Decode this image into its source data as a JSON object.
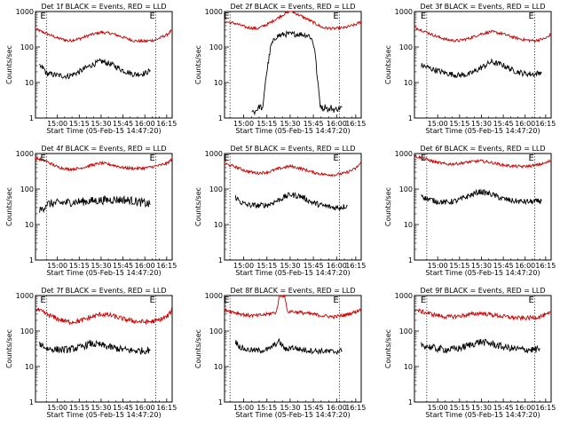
{
  "chart_data": [
    {
      "type": "line",
      "title": "Det 1f BLACK = Events, RED = LLD",
      "xlabel": "Start Time (05-Feb-15 14:47:20)",
      "ylabel": "Counts/sec",
      "yscale": "log",
      "ylim": [
        1,
        1000
      ],
      "xlim": [
        0,
        100
      ],
      "xticks": [
        "15:00",
        "15:15",
        "15:30",
        "15:45",
        "16:00",
        "16:15"
      ],
      "xtick_pos": [
        16,
        32,
        48,
        64,
        80,
        96
      ],
      "markers": [
        "E",
        "E"
      ],
      "vlines": [
        8,
        88
      ],
      "series": [
        {
          "color": "#cc0000",
          "x": [
            0,
            8,
            16,
            24,
            32,
            40,
            48,
            56,
            64,
            72,
            80,
            88,
            96,
            100
          ],
          "y": [
            320,
            240,
            180,
            150,
            170,
            220,
            260,
            240,
            190,
            150,
            145,
            160,
            220,
            300
          ],
          "noise": 0.04
        },
        {
          "color": "#000000",
          "x": [
            3,
            6,
            8,
            16,
            24,
            32,
            40,
            48,
            56,
            64,
            72,
            80,
            84
          ],
          "y": [
            28,
            25,
            18,
            16,
            15,
            20,
            30,
            40,
            32,
            22,
            17,
            18,
            22
          ],
          "noise": 0.08
        }
      ]
    },
    {
      "type": "line",
      "title": "Det 2f BLACK = Events, RED = LLD",
      "xlabel": "Start Time (05-Feb-15 14:47:20)",
      "ylabel": "Counts/sec",
      "yscale": "log",
      "ylim": [
        1,
        1000
      ],
      "xlim": [
        0,
        100
      ],
      "xticks": [
        "15:00",
        "15:15",
        "15:30",
        "15:45",
        "16:00",
        "16:15"
      ],
      "xtick_pos": [
        14,
        31,
        48,
        65,
        82,
        96
      ],
      "markers": [
        "E",
        "E"
      ],
      "vlines": [
        4,
        84
      ],
      "series": [
        {
          "color": "#cc0000",
          "x": [
            0,
            8,
            16,
            24,
            32,
            40,
            48,
            56,
            64,
            72,
            80,
            88,
            96,
            100
          ],
          "y": [
            520,
            460,
            360,
            330,
            450,
            700,
            1050,
            750,
            520,
            350,
            330,
            350,
            430,
            520
          ],
          "noise": 0.04
        },
        {
          "color": "#000000",
          "x": [
            20,
            22,
            24,
            26,
            28,
            30,
            34,
            38,
            44,
            50,
            56,
            62,
            64,
            66,
            68,
            70,
            72,
            74,
            76,
            78,
            80,
            86
          ],
          "y": [
            1.6,
            1.5,
            1.8,
            2.2,
            1.7,
            12,
            110,
            200,
            230,
            230,
            230,
            210,
            160,
            90,
            12,
            2.4,
            1.8,
            2.2,
            1.6,
            2.0,
            1.7,
            2.0
          ],
          "noise": 0.08
        }
      ]
    },
    {
      "type": "line",
      "title": "Det 3f BLACK = Events, RED = LLD",
      "xlabel": "Start Time (05-Feb-15 14:47:20)",
      "ylabel": "Counts/sec",
      "yscale": "log",
      "ylim": [
        1,
        1000
      ],
      "xlim": [
        0,
        100
      ],
      "xticks": [
        "15:00",
        "15:15",
        "15:30",
        "15:45",
        "16:00",
        "16:15"
      ],
      "xtick_pos": [
        17,
        33,
        49,
        65,
        81,
        96
      ],
      "markers": [
        "E",
        "E"
      ],
      "vlines": [
        9,
        88
      ],
      "series": [
        {
          "color": "#cc0000",
          "x": [
            0,
            8,
            16,
            24,
            32,
            40,
            48,
            56,
            64,
            72,
            80,
            88,
            96,
            100
          ],
          "y": [
            360,
            270,
            200,
            160,
            150,
            175,
            230,
            270,
            240,
            190,
            160,
            150,
            175,
            230
          ],
          "noise": 0.04
        },
        {
          "color": "#000000",
          "x": [
            5,
            8,
            16,
            24,
            32,
            40,
            48,
            56,
            64,
            72,
            80,
            88,
            93
          ],
          "y": [
            30,
            28,
            22,
            18,
            16,
            17,
            25,
            38,
            32,
            22,
            18,
            17,
            20
          ],
          "noise": 0.08
        }
      ]
    },
    {
      "type": "line",
      "title": "Det 4f BLACK = Events, RED = LLD",
      "xlabel": "Start Time (05-Feb-15 14:47:20)",
      "ylabel": "Counts/sec",
      "yscale": "log",
      "ylim": [
        1,
        1000
      ],
      "xlim": [
        0,
        100
      ],
      "xticks": [
        "15:00",
        "15:15",
        "15:30",
        "15:45",
        "16:00",
        "16:15"
      ],
      "xtick_pos": [
        16,
        32,
        48,
        64,
        80,
        96
      ],
      "markers": [
        "E",
        "E"
      ],
      "vlines": [
        8,
        88
      ],
      "series": [
        {
          "color": "#cc0000",
          "x": [
            0,
            8,
            16,
            24,
            32,
            40,
            48,
            56,
            64,
            72,
            80,
            88,
            96,
            100
          ],
          "y": [
            750,
            600,
            420,
            360,
            380,
            460,
            540,
            480,
            400,
            380,
            390,
            440,
            520,
            700
          ],
          "noise": 0.04
        },
        {
          "color": "#000000",
          "x": [
            3,
            6,
            8,
            16,
            24,
            32,
            40,
            48,
            56,
            64,
            72,
            80,
            84
          ],
          "y": [
            24,
            30,
            38,
            40,
            42,
            44,
            46,
            48,
            50,
            50,
            46,
            40,
            36
          ],
          "noise": 0.12
        }
      ]
    },
    {
      "type": "line",
      "title": "Det 5f BLACK = Events, RED = LLD",
      "xlabel": "Start Time (05-Feb-15 14:47:20)",
      "ylabel": "Counts/sec",
      "yscale": "log",
      "ylim": [
        1,
        1000
      ],
      "xlim": [
        0,
        100
      ],
      "xticks": [
        "15:00",
        "15:15",
        "15:30",
        "15:45",
        "16:00",
        "16:15"
      ],
      "xtick_pos": [
        14,
        31,
        48,
        65,
        82,
        96
      ],
      "markers": [
        "E",
        "E"
      ],
      "vlines": [
        4,
        84
      ],
      "series": [
        {
          "color": "#cc0000",
          "x": [
            0,
            8,
            16,
            24,
            32,
            40,
            48,
            56,
            64,
            72,
            80,
            88,
            96,
            100
          ],
          "y": [
            520,
            420,
            320,
            280,
            300,
            380,
            440,
            380,
            300,
            260,
            250,
            280,
            380,
            560
          ],
          "noise": 0.04
        },
        {
          "color": "#000000",
          "x": [
            8,
            12,
            16,
            24,
            32,
            40,
            48,
            56,
            64,
            72,
            80,
            84,
            90
          ],
          "y": [
            60,
            42,
            36,
            34,
            36,
            50,
            70,
            62,
            42,
            34,
            30,
            30,
            34
          ],
          "noise": 0.08
        }
      ]
    },
    {
      "type": "line",
      "title": "Det 6f BLACK = Events, RED = LLD",
      "xlabel": "Start Time (05-Feb-15 14:47:20)",
      "ylabel": "Counts/sec",
      "yscale": "log",
      "ylim": [
        1,
        1000
      ],
      "xlim": [
        0,
        100
      ],
      "xticks": [
        "15:00",
        "15:15",
        "15:30",
        "15:45",
        "16:00",
        "16:15"
      ],
      "xtick_pos": [
        17,
        33,
        49,
        65,
        81,
        96
      ],
      "markers": [
        "E",
        "E"
      ],
      "vlines": [
        9,
        88
      ],
      "series": [
        {
          "color": "#cc0000",
          "x": [
            0,
            8,
            16,
            24,
            32,
            40,
            48,
            56,
            64,
            72,
            80,
            88,
            96,
            100
          ],
          "y": [
            850,
            700,
            560,
            500,
            520,
            580,
            620,
            560,
            480,
            440,
            430,
            460,
            540,
            640
          ],
          "noise": 0.04
        },
        {
          "color": "#000000",
          "x": [
            5,
            8,
            16,
            24,
            32,
            40,
            48,
            56,
            64,
            72,
            80,
            88,
            93
          ],
          "y": [
            70,
            55,
            45,
            42,
            48,
            65,
            85,
            72,
            54,
            46,
            44,
            44,
            46
          ],
          "noise": 0.08
        }
      ]
    },
    {
      "type": "line",
      "title": "Det 7f BLACK = Events, RED = LLD",
      "xlabel": "Start Time (05-Feb-15 14:47:20)",
      "ylabel": "Counts/sec",
      "yscale": "log",
      "ylim": [
        1,
        1000
      ],
      "xlim": [
        0,
        100
      ],
      "xticks": [
        "15:00",
        "15:15",
        "15:30",
        "15:45",
        "16:00",
        "16:15"
      ],
      "xtick_pos": [
        16,
        32,
        48,
        64,
        80,
        96
      ],
      "markers": [
        "E",
        "E"
      ],
      "vlines": [
        8,
        88
      ],
      "series": [
        {
          "color": "#cc0000",
          "x": [
            0,
            8,
            16,
            24,
            32,
            40,
            48,
            56,
            64,
            72,
            80,
            88,
            96,
            100
          ],
          "y": [
            420,
            300,
            220,
            180,
            190,
            240,
            300,
            270,
            220,
            190,
            180,
            190,
            250,
            380
          ],
          "noise": 0.07
        },
        {
          "color": "#000000",
          "x": [
            3,
            6,
            8,
            16,
            24,
            32,
            40,
            48,
            56,
            64,
            72,
            80,
            84
          ],
          "y": [
            45,
            38,
            32,
            30,
            30,
            34,
            44,
            40,
            34,
            30,
            28,
            28,
            30
          ],
          "noise": 0.1
        }
      ]
    },
    {
      "type": "line",
      "title": "Det 8f BLACK = Events, RED = LLD",
      "xlabel": "Start Time (05-Feb-15 14:47:20)",
      "ylabel": "Counts/sec",
      "yscale": "log",
      "ylim": [
        1,
        1000
      ],
      "xlim": [
        0,
        100
      ],
      "xticks": [
        "15:00",
        "15:15",
        "15:30",
        "15:45",
        "16:00",
        "16:15"
      ],
      "xtick_pos": [
        14,
        31,
        48,
        65,
        82,
        96
      ],
      "markers": [
        "E",
        "E"
      ],
      "vlines": [
        4,
        84
      ],
      "series": [
        {
          "color": "#cc0000",
          "x": [
            0,
            8,
            16,
            24,
            32,
            38,
            40,
            44,
            46,
            48,
            56,
            64,
            72,
            80,
            88,
            96,
            100
          ],
          "y": [
            400,
            330,
            280,
            270,
            300,
            340,
            1000,
            1000,
            340,
            360,
            330,
            300,
            270,
            250,
            280,
            350,
            420
          ],
          "noise": 0.05
        },
        {
          "color": "#000000",
          "x": [
            8,
            12,
            16,
            24,
            32,
            38,
            40,
            44,
            46,
            48,
            56,
            64,
            72,
            80,
            86
          ],
          "y": [
            50,
            34,
            30,
            28,
            30,
            45,
            50,
            32,
            28,
            36,
            30,
            28,
            27,
            26,
            28
          ],
          "noise": 0.08
        }
      ]
    },
    {
      "type": "line",
      "title": "Det 9f BLACK = Events, RED = LLD",
      "xlabel": "Start Time (05-Feb-15 14:47:20)",
      "ylabel": "Counts/sec",
      "yscale": "log",
      "ylim": [
        1,
        1000
      ],
      "xlim": [
        0,
        100
      ],
      "xticks": [
        "15:00",
        "15:15",
        "15:30",
        "15:45",
        "16:00",
        "16:15"
      ],
      "xtick_pos": [
        17,
        33,
        49,
        65,
        81,
        96
      ],
      "markers": [
        "E",
        "E"
      ],
      "vlines": [
        9,
        88
      ],
      "series": [
        {
          "color": "#cc0000",
          "x": [
            0,
            8,
            16,
            24,
            32,
            40,
            48,
            56,
            64,
            72,
            80,
            88,
            96,
            100
          ],
          "y": [
            400,
            330,
            280,
            250,
            260,
            290,
            320,
            290,
            260,
            240,
            230,
            240,
            280,
            320
          ],
          "noise": 0.06
        },
        {
          "color": "#000000",
          "x": [
            5,
            8,
            16,
            24,
            32,
            40,
            48,
            56,
            64,
            72,
            80,
            88,
            92
          ],
          "y": [
            42,
            38,
            32,
            30,
            32,
            40,
            50,
            44,
            36,
            32,
            30,
            30,
            32
          ],
          "noise": 0.1
        }
      ]
    }
  ]
}
